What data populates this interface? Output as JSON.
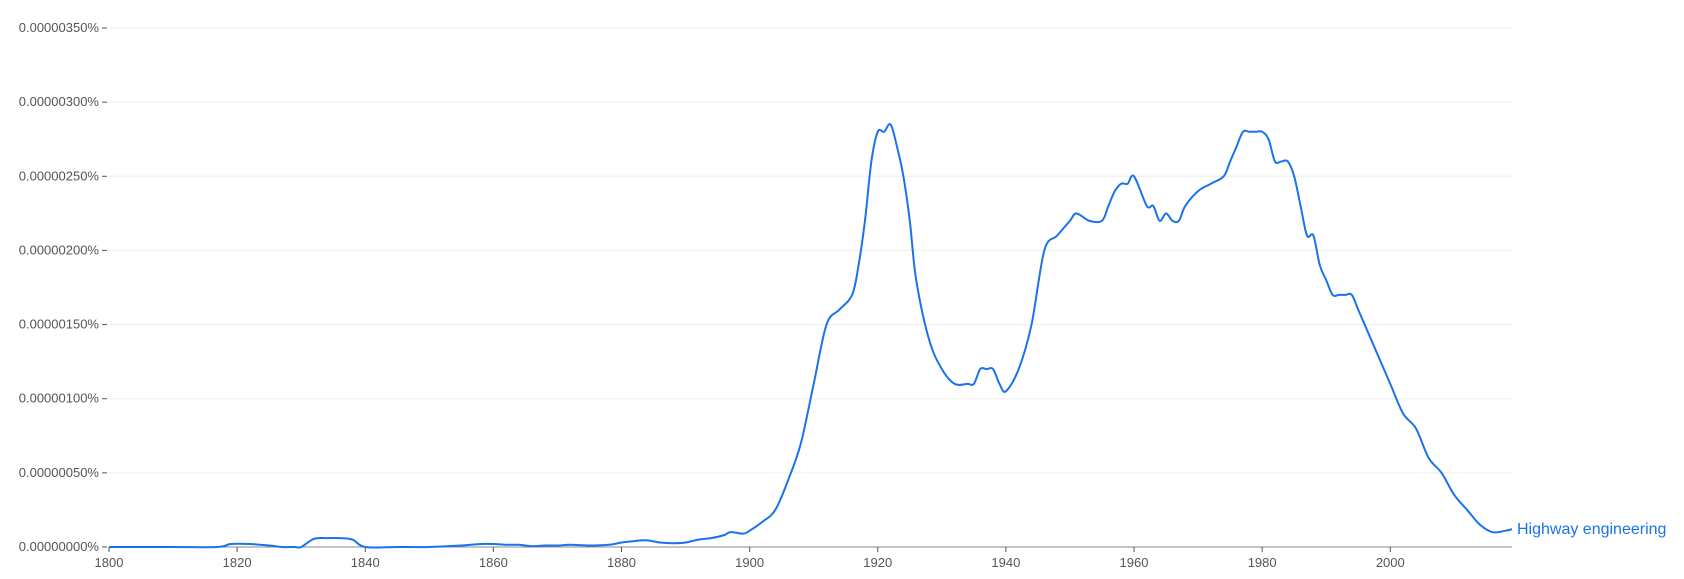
{
  "chart_data": {
    "type": "line",
    "title": "",
    "xlabel": "",
    "ylabel": "",
    "xlim": [
      1800,
      2019
    ],
    "ylim": [
      0,
      3.5e-06
    ],
    "grid": true,
    "legend": "inline-right",
    "x_ticks": [
      {
        "value": 1800,
        "label": "1800"
      },
      {
        "value": 1820,
        "label": "1820"
      },
      {
        "value": 1840,
        "label": "1840"
      },
      {
        "value": 1860,
        "label": "1860"
      },
      {
        "value": 1880,
        "label": "1880"
      },
      {
        "value": 1900,
        "label": "1900"
      },
      {
        "value": 1920,
        "label": "1920"
      },
      {
        "value": 1940,
        "label": "1940"
      },
      {
        "value": 1960,
        "label": "1960"
      },
      {
        "value": 1980,
        "label": "1980"
      },
      {
        "value": 2000,
        "label": "2000"
      }
    ],
    "y_ticks": [
      {
        "value": 0,
        "label": "0.00000000%"
      },
      {
        "value": 5e-07,
        "label": "0.00000050%"
      },
      {
        "value": 1e-06,
        "label": "0.00000100%"
      },
      {
        "value": 1.5e-06,
        "label": "0.00000150%"
      },
      {
        "value": 2e-06,
        "label": "0.00000200%"
      },
      {
        "value": 2.5e-06,
        "label": "0.00000250%"
      },
      {
        "value": 3e-06,
        "label": "0.00000300%"
      },
      {
        "value": 3.5e-06,
        "label": "0.00000350%"
      }
    ],
    "series": [
      {
        "name": "Highway engineering",
        "color": "#1a73e8",
        "x": [
          1800,
          1810,
          1817,
          1819,
          1822,
          1825,
          1827,
          1829,
          1830,
          1832,
          1834,
          1836,
          1838,
          1840,
          1845,
          1850,
          1855,
          1858,
          1860,
          1862,
          1864,
          1866,
          1868,
          1870,
          1872,
          1875,
          1878,
          1880,
          1882,
          1884,
          1886,
          1888,
          1890,
          1892,
          1894,
          1896,
          1897,
          1899,
          1900,
          1902,
          1904,
          1906,
          1908,
          1910,
          1912,
          1914,
          1916,
          1917,
          1918,
          1919,
          1920,
          1921,
          1922,
          1923,
          1924,
          1925,
          1926,
          1928,
          1930,
          1932,
          1934,
          1935,
          1936,
          1937,
          1938,
          1939,
          1940,
          1942,
          1944,
          1946,
          1948,
          1950,
          1951,
          1953,
          1955,
          1956,
          1957,
          1958,
          1959,
          1960,
          1962,
          1963,
          1964,
          1965,
          1966,
          1967,
          1968,
          1970,
          1972,
          1974,
          1975,
          1976,
          1977,
          1978,
          1979,
          1980,
          1981,
          1982,
          1983,
          1984,
          1985,
          1986,
          1987,
          1988,
          1989,
          1990,
          1991,
          1992,
          1993,
          1994,
          1995,
          1996,
          1998,
          2000,
          2002,
          2004,
          2006,
          2008,
          2010,
          2012,
          2014,
          2016,
          2018,
          2019
        ],
        "values": [
          0,
          0,
          0,
          2e-08,
          2e-08,
          1e-08,
          0,
          0,
          0,
          5.5e-08,
          6e-08,
          6e-08,
          5e-08,
          0,
          0,
          0,
          1e-08,
          2e-08,
          2e-08,
          1.5e-08,
          1.5e-08,
          5e-09,
          1e-08,
          1e-08,
          1.5e-08,
          1e-08,
          1.5e-08,
          3e-08,
          4e-08,
          4.5e-08,
          3e-08,
          2.5e-08,
          3e-08,
          5e-08,
          6e-08,
          8e-08,
          1e-07,
          9e-08,
          1.1e-07,
          1.7e-07,
          2.5e-07,
          4.5e-07,
          7e-07,
          1.1e-06,
          1.5e-06,
          1.6e-06,
          1.7e-06,
          1.9e-06,
          2.2e-06,
          2.6e-06,
          2.8e-06,
          2.8e-06,
          2.85e-06,
          2.7e-06,
          2.5e-06,
          2.2e-06,
          1.8e-06,
          1.4e-06,
          1.2e-06,
          1.1e-06,
          1.1e-06,
          1.1e-06,
          1.2e-06,
          1.2e-06,
          1.2e-06,
          1.1e-06,
          1.05e-06,
          1.2e-06,
          1.5e-06,
          2e-06,
          2.1e-06,
          2.2e-06,
          2.25e-06,
          2.2e-06,
          2.2e-06,
          2.3e-06,
          2.4e-06,
          2.45e-06,
          2.45e-06,
          2.5e-06,
          2.3e-06,
          2.3e-06,
          2.2e-06,
          2.25e-06,
          2.2e-06,
          2.2e-06,
          2.3e-06,
          2.4e-06,
          2.45e-06,
          2.5e-06,
          2.6e-06,
          2.7e-06,
          2.8e-06,
          2.8e-06,
          2.8e-06,
          2.8e-06,
          2.75e-06,
          2.6e-06,
          2.6e-06,
          2.6e-06,
          2.5e-06,
          2.3e-06,
          2.1e-06,
          2.1e-06,
          1.9e-06,
          1.8e-06,
          1.7e-06,
          1.7e-06,
          1.7e-06,
          1.7e-06,
          1.6e-06,
          1.5e-06,
          1.3e-06,
          1.1e-06,
          9e-07,
          8e-07,
          6e-07,
          5e-07,
          3.5e-07,
          2.5e-07,
          1.5e-07,
          1e-07,
          1.1e-07,
          1.2e-07
        ]
      }
    ]
  }
}
